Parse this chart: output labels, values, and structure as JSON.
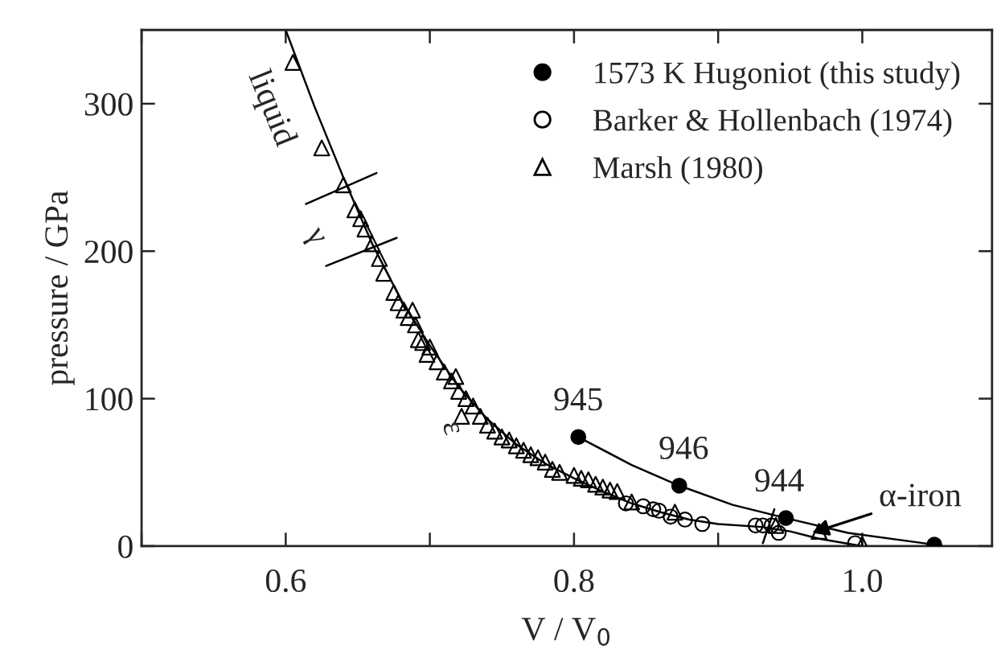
{
  "chart_data": {
    "type": "scatter",
    "xlabel": "V / V$_{0}$",
    "ylabel": "pressure / GPa",
    "xlim": [
      0.5,
      1.09
    ],
    "ylim": [
      0,
      350
    ],
    "xticks": [
      {
        "value": 0.5,
        "label": null
      },
      {
        "value": 0.6,
        "label": "0.6"
      },
      {
        "value": 0.7,
        "label": null
      },
      {
        "value": 0.8,
        "label": "0.8"
      },
      {
        "value": 0.9,
        "label": null
      },
      {
        "value": 1.0,
        "label": "1.0"
      }
    ],
    "yticks": [
      0,
      100,
      200,
      300
    ],
    "grid": false,
    "legend": "top right",
    "series": [
      {
        "type": "line",
        "color": "#000000",
        "marker": "none",
        "line_style": "solid",
        "x": [
          0.6,
          0.62,
          0.64,
          0.66,
          0.68,
          0.7,
          0.72,
          0.74,
          0.76,
          0.78,
          0.8,
          0.82,
          0.84,
          0.86,
          0.88,
          0.9,
          0.93,
          0.95,
          0.97,
          1.0
        ],
        "values": [
          350,
          298,
          250,
          205,
          167,
          136,
          108,
          86,
          69,
          56,
          46,
          37,
          29,
          23,
          18,
          15,
          13,
          10,
          5,
          0
        ]
      },
      {
        "type": "line",
        "color": "#000000",
        "marker": "none",
        "line_style": "solid",
        "x": [
          0.803,
          0.84,
          0.873,
          0.91,
          0.947,
          0.99,
          1.05
        ],
        "values": [
          74,
          55,
          41,
          28,
          19,
          9,
          1
        ]
      },
      {
        "type": "line",
        "color": "#000000",
        "marker": "none",
        "line_style": "solid",
        "x": [
          0.614,
          0.663
        ],
        "values": [
          232,
          253
        ]
      },
      {
        "type": "line",
        "color": "#000000",
        "marker": "none",
        "line_style": "solid",
        "x": [
          0.628,
          0.677
        ],
        "values": [
          190,
          209
        ]
      },
      {
        "type": "line",
        "color": "#000000",
        "marker": "none",
        "line_style": "solid",
        "x": [
          0.931,
          0.939
        ],
        "values": [
          2,
          25
        ]
      },
      {
        "name": "1573 K Hugoniot (this study)",
        "color": "#000000",
        "marker": "circle",
        "x": [
          0.803,
          0.873,
          0.947,
          1.05
        ],
        "values": [
          74,
          41,
          19,
          1
        ]
      },
      {
        "name": "Barker & Hollenbach (1974)",
        "color": "#000000",
        "marker": "circle",
        "x": [
          0.836,
          0.848,
          0.855,
          0.859,
          0.867,
          0.877,
          0.889,
          0.926,
          0.931,
          0.937,
          0.942,
          0.995
        ],
        "values": [
          29,
          27,
          25,
          24,
          20,
          18,
          15,
          14,
          14,
          14,
          9,
          2
        ]
      },
      {
        "name": "Marsh (1980)",
        "color": "#000000",
        "marker": "triangle",
        "x": [
          0.605,
          0.625,
          0.64,
          0.648,
          0.652,
          0.655,
          0.66,
          0.665,
          0.668,
          0.675,
          0.678,
          0.682,
          0.685,
          0.688,
          0.69,
          0.692,
          0.695,
          0.698,
          0.7,
          0.705,
          0.71,
          0.715,
          0.718,
          0.72,
          0.725,
          0.722,
          0.73,
          0.735,
          0.74,
          0.745,
          0.75,
          0.755,
          0.76,
          0.765,
          0.77,
          0.775,
          0.78,
          0.785,
          0.79,
          0.8,
          0.805,
          0.81,
          0.815,
          0.82,
          0.825,
          0.83,
          0.84,
          0.87,
          0.94,
          0.97,
          1.0
        ],
        "values": [
          328,
          270,
          245,
          228,
          222,
          215,
          205,
          195,
          185,
          172,
          165,
          160,
          155,
          160,
          150,
          140,
          138,
          130,
          135,
          125,
          118,
          112,
          115,
          105,
          100,
          88,
          95,
          88,
          82,
          78,
          74,
          72,
          68,
          65,
          62,
          60,
          57,
          52,
          50,
          48,
          46,
          45,
          42,
          40,
          38,
          37,
          30,
          23,
          14,
          10,
          1
        ]
      }
    ],
    "annotations": [
      {
        "text": "945",
        "x": 0.803,
        "y": 74
      },
      {
        "text": "946",
        "x": 0.873,
        "y": 41
      },
      {
        "text": "944",
        "x": 0.947,
        "y": 19
      },
      {
        "text": "α-iron",
        "x": 0.965,
        "y": 9
      },
      {
        "text": "liquid",
        "x": 0.605,
        "y": 330
      },
      "γ",
      {
        "text": "ε",
        "x": 0.715,
        "y": 80
      }
    ]
  }
}
